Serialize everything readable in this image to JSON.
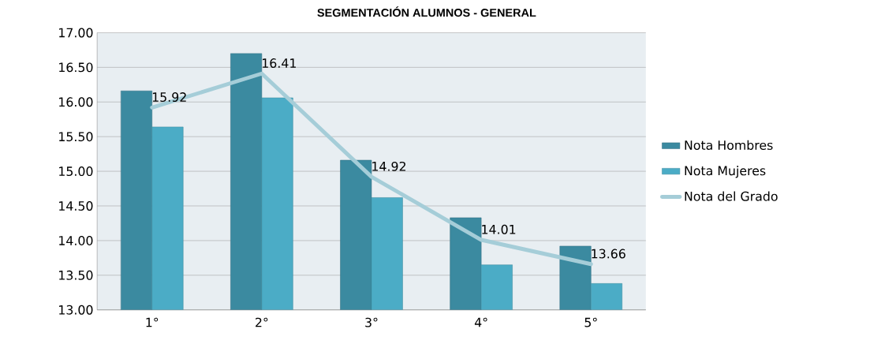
{
  "chart_data": {
    "type": "bar",
    "title": "SEGMENTACIÓN ALUMNOS - GENERAL",
    "categories": [
      "1°",
      "2°",
      "3°",
      "4°",
      "5°"
    ],
    "series": [
      {
        "name": "Nota Hombres",
        "color": "#3b8aa0",
        "values": [
          16.16,
          16.7,
          15.16,
          14.33,
          13.92
        ]
      },
      {
        "name": "Nota Mujeres",
        "color": "#4bacc6",
        "values": [
          15.64,
          16.06,
          14.62,
          13.65,
          13.38
        ]
      },
      {
        "name": "Nota del Grado",
        "type": "line",
        "color": "#a5cdd8",
        "values": [
          15.92,
          16.41,
          14.92,
          14.01,
          13.66
        ],
        "data_labels": true
      }
    ],
    "ylim": [
      13,
      17
    ],
    "yticks": [
      {
        "value": 13,
        "label": "13.00"
      },
      {
        "value": 13.5,
        "label": "13.50"
      },
      {
        "value": 14,
        "label": "14.00"
      },
      {
        "value": 14.5,
        "label": "14.50"
      },
      {
        "value": 15,
        "label": "15.00"
      },
      {
        "value": 15.5,
        "label": "15.50"
      },
      {
        "value": 16,
        "label": "16.00"
      },
      {
        "value": 16.5,
        "label": "16.50"
      },
      {
        "value": 17,
        "label": "17.00"
      }
    ],
    "grid": "y",
    "legend": "right"
  }
}
